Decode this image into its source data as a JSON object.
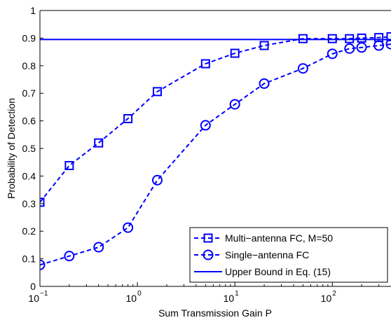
{
  "chart_data": {
    "type": "line",
    "xscale": "log",
    "xlim": [
      0.1,
      400
    ],
    "ylim": [
      0,
      1
    ],
    "xlabel": "Sum Transmission Gain P",
    "ylabel": "Probability of Detection",
    "grid": false,
    "legend_position": "bottom-right",
    "x_ticks": [
      {
        "value": 0.1,
        "base": "10",
        "exp": "−1"
      },
      {
        "value": 1,
        "base": "10",
        "exp": "0"
      },
      {
        "value": 10,
        "base": "10",
        "exp": "1"
      },
      {
        "value": 100,
        "base": "10",
        "exp": "2"
      }
    ],
    "y_ticks": [
      {
        "value": 0,
        "label": "0"
      },
      {
        "value": 0.1,
        "label": "0.1"
      },
      {
        "value": 0.2,
        "label": "0.2"
      },
      {
        "value": 0.3,
        "label": "0.3"
      },
      {
        "value": 0.4,
        "label": "0.4"
      },
      {
        "value": 0.5,
        "label": "0.5"
      },
      {
        "value": 0.6,
        "label": "0.6"
      },
      {
        "value": 0.7,
        "label": "0.7"
      },
      {
        "value": 0.8,
        "label": "0.8"
      },
      {
        "value": 0.9,
        "label": "0.9"
      },
      {
        "value": 1,
        "label": "1"
      }
    ],
    "series": [
      {
        "name": "Multi−antenna FC, M=50",
        "color": "#0000ff",
        "line_style": "dashed",
        "marker": "square",
        "x": [
          0.1,
          0.2,
          0.4,
          0.8,
          1.6,
          5,
          10,
          20,
          50,
          100,
          150,
          200,
          300,
          400
        ],
        "y": [
          0.305,
          0.438,
          0.52,
          0.608,
          0.706,
          0.807,
          0.845,
          0.873,
          0.898,
          0.898,
          0.898,
          0.9,
          0.902,
          0.905
        ]
      },
      {
        "name": "Single−antenna FC",
        "color": "#0000ff",
        "line_style": "dashed",
        "marker": "circle",
        "x": [
          0.1,
          0.2,
          0.4,
          0.8,
          1.6,
          5,
          10,
          20,
          50,
          100,
          150,
          200,
          300,
          400
        ],
        "y": [
          0.078,
          0.11,
          0.142,
          0.213,
          0.385,
          0.584,
          0.66,
          0.735,
          0.79,
          0.843,
          0.862,
          0.866,
          0.873,
          0.878
        ]
      },
      {
        "name": "Upper Bound in Eq. (15)",
        "color": "#0000ff",
        "line_style": "solid",
        "marker": "none",
        "x": [
          0.1,
          400
        ],
        "y": [
          0.895,
          0.895
        ]
      }
    ]
  }
}
